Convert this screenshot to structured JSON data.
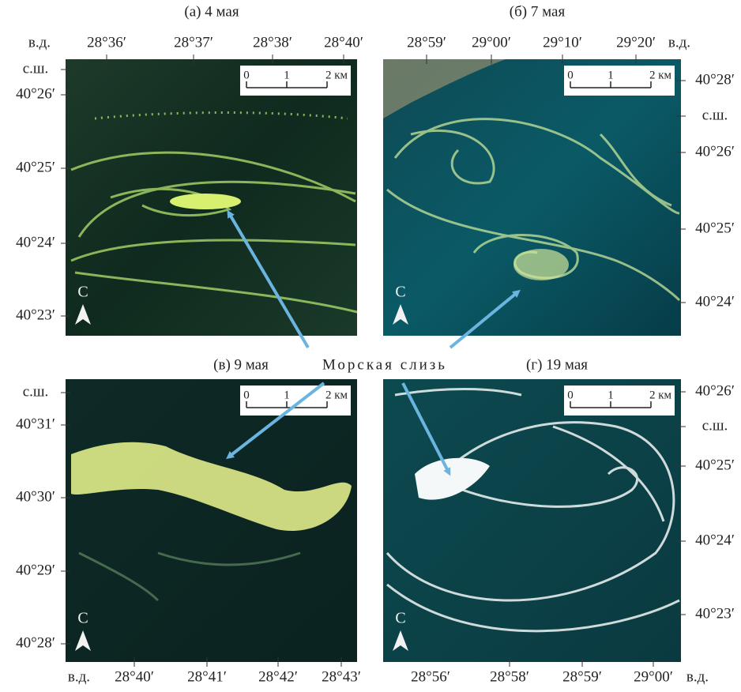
{
  "annotation": "Морская слизь",
  "panels": [
    {
      "title": "(а) 4 мая",
      "scale": [
        "0",
        "1",
        "2 км"
      ],
      "north": "С",
      "lon_labels": [
        "в.д.",
        "28°36′",
        "28°37′",
        "28°38′",
        "28°40′"
      ],
      "lat_labels": [
        "с.ш.",
        "40°26′",
        "40°25′",
        "40°24′",
        "40°23′"
      ]
    },
    {
      "title": "(б) 7 мая",
      "scale": [
        "0",
        "1",
        "2 км"
      ],
      "north": "С",
      "lon_labels": [
        "28°59′",
        "29°00′",
        "29°10′",
        "29°20′",
        "в.д."
      ],
      "lat_labels": [
        "40°28′",
        "с.ш.",
        "40°26′",
        "40°25′",
        "40°24′"
      ]
    },
    {
      "title": "(в) 9 мая",
      "scale": [
        "0",
        "1",
        "2 км"
      ],
      "north": "С",
      "lon_labels": [
        "в.д.",
        "28°40′",
        "28°41′",
        "28°42′",
        "28°43′"
      ],
      "lat_labels": [
        "с.ш.",
        "40°31′",
        "40°30′",
        "40°29′",
        "40°28′"
      ]
    },
    {
      "title": "(г) 19 мая",
      "scale": [
        "0",
        "1",
        "2 км"
      ],
      "north": "С",
      "lon_labels": [
        "28°56′",
        "28°58′",
        "28°59′",
        "29°00′",
        "в.д."
      ],
      "lat_labels": [
        "40°26′",
        "с.ш.",
        "40°25′",
        "40°24′",
        "40°23′"
      ]
    }
  ]
}
